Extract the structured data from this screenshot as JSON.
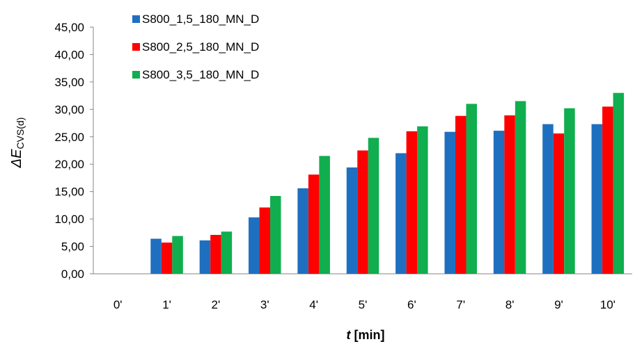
{
  "chart_data": {
    "type": "bar",
    "categories": [
      "0'",
      "1'",
      "2'",
      "3'",
      "4'",
      "5'",
      "6'",
      "7'",
      "8'",
      "9'",
      "10'"
    ],
    "series": [
      {
        "name": "S800_1,5_180_MN_D",
        "color": "#1f6fc0",
        "values": [
          0,
          6.4,
          6.1,
          10.3,
          15.6,
          19.4,
          22.0,
          25.9,
          26.1,
          27.3,
          27.3
        ]
      },
      {
        "name": "S800_2,5_180_MN_D",
        "color": "#ff0000",
        "values": [
          0,
          5.7,
          7.1,
          12.1,
          18.1,
          22.5,
          26.0,
          28.8,
          28.9,
          25.6,
          30.5
        ]
      },
      {
        "name": "S800_3,5_180_MN_D",
        "color": "#10ae4e",
        "values": [
          0,
          6.9,
          7.7,
          14.2,
          21.5,
          24.8,
          26.9,
          31.0,
          31.5,
          30.2,
          33.0
        ]
      }
    ],
    "y_ticks": [
      "0,00",
      "5,00",
      "10,00",
      "15,00",
      "20,00",
      "25,00",
      "30,00",
      "35,00",
      "40,00",
      "45,00"
    ],
    "ylim": [
      0,
      45
    ],
    "ylabel": {
      "main": "ΔE",
      "subscript": "CVS(d)"
    },
    "xlabel": {
      "var": "t",
      "unit": " [min]"
    },
    "grid": false,
    "legend_position": "top-left"
  }
}
